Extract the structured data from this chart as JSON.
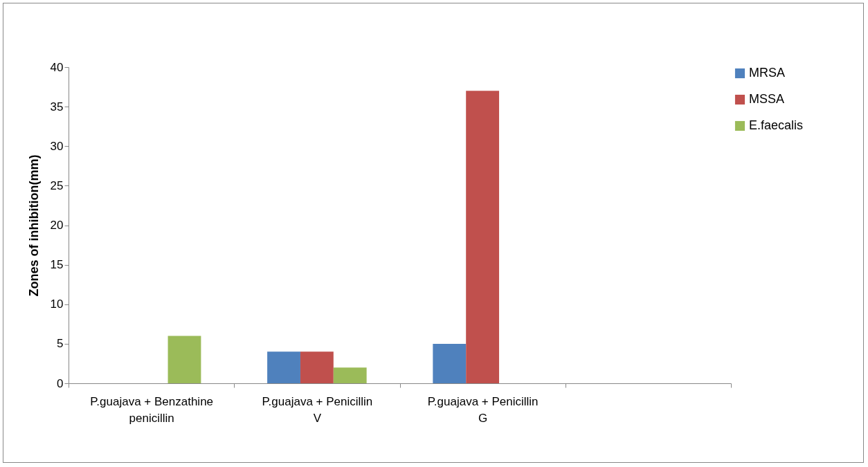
{
  "chart_data": {
    "type": "bar",
    "ylabel": "Zones of inhibition(mm)",
    "categories": [
      "P.guajava + Benzathine penicillin",
      "P.guajava + Penicillin V",
      "P.guajava + Penicillin G",
      null
    ],
    "series": [
      {
        "name": "MRSA",
        "color": "#4f81bd",
        "values": [
          null,
          4,
          5,
          null
        ]
      },
      {
        "name": "MSSA",
        "color": "#c0504d",
        "values": [
          null,
          4,
          37,
          null
        ]
      },
      {
        "name": "E.faecalis",
        "color": "#9bbb59",
        "values": [
          6,
          2,
          null,
          null
        ]
      }
    ],
    "ylim": [
      0,
      40
    ],
    "yticks": [
      0,
      5,
      10,
      15,
      20,
      25,
      30,
      35,
      40
    ],
    "grid": false,
    "legend": "right"
  }
}
